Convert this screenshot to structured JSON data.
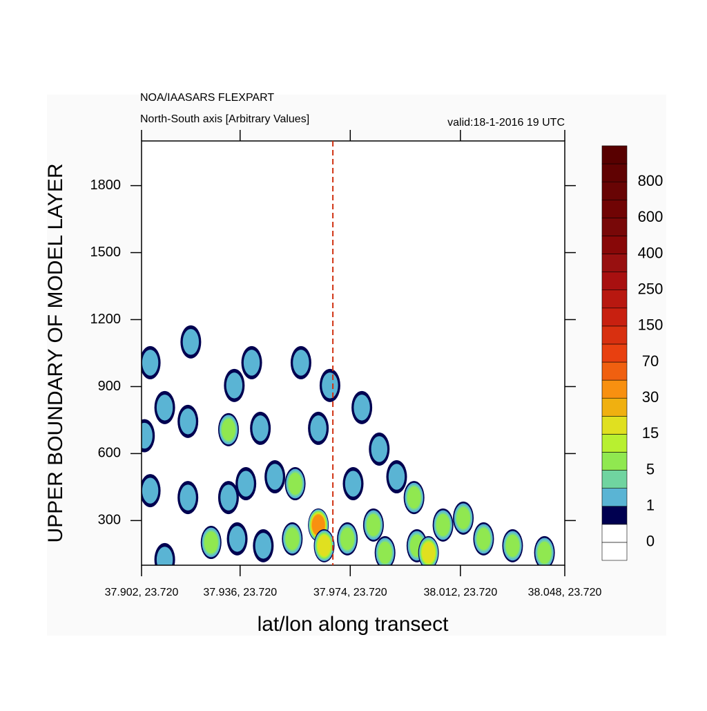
{
  "chart_data": {
    "type": "contour",
    "title": "NOA/IAASARS FLEXPART",
    "subtitle": "North-South axis [Arbitrary Values]",
    "valid_time": "valid:18-1-2016 19 UTC",
    "ylabel": "UPPER BOUNDARY OF MODEL LAYER",
    "xlabel": "lat/lon along transect",
    "xlim": [
      37.902,
      38.048
    ],
    "xticks": [
      {
        "value": 37.902,
        "label": "37.902, 23.720"
      },
      {
        "value": 37.936,
        "label": "37.936, 23.720"
      },
      {
        "value": 37.974,
        "label": "37.974, 23.720"
      },
      {
        "value": 38.012,
        "label": "38.012, 23.720"
      },
      {
        "value": 38.048,
        "label": "38.048, 23.720"
      }
    ],
    "ylim": [
      100,
      2000
    ],
    "yticks": [
      300,
      600,
      900,
      1200,
      1500,
      1800
    ],
    "marker_x": 37.968,
    "marker_color": "#d03010",
    "x": [
      37.905,
      37.919,
      37.94,
      37.957,
      37.934,
      37.967,
      37.978,
      37.91,
      37.918,
      37.932,
      37.943,
      37.963,
      37.984,
      37.903,
      37.905,
      37.918,
      37.932,
      37.935,
      37.926,
      37.938,
      37.948,
      37.955,
      37.963,
      37.965,
      37.975,
      37.973,
      37.982,
      37.99,
      37.996,
      37.997,
      38.001,
      38.006,
      38.013,
      38.02,
      38.03,
      38.041,
      37.91,
      37.944,
      37.954,
      37.986
    ],
    "y": [
      1007,
      1100,
      1007,
      1007,
      905,
      905,
      806,
      806,
      744,
      707,
      713,
      713,
      620,
      680,
      434,
      403,
      403,
      218,
      202,
      465,
      496,
      465,
      280,
      187,
      465,
      218,
      280,
      496,
      403,
      187,
      156,
      280,
      311,
      218,
      187,
      156,
      125,
      187,
      218,
      156
    ],
    "values": [
      3,
      3,
      3,
      3,
      3,
      3,
      3,
      3,
      3,
      8,
      3,
      3,
      3,
      3,
      3,
      3,
      3,
      4,
      5,
      3,
      4,
      6,
      30,
      20,
      3,
      8,
      8,
      3,
      8,
      10,
      25,
      8,
      12,
      10,
      8,
      8,
      2,
      3,
      5,
      8
    ],
    "colorbar": {
      "colors": [
        "#ffffff",
        "#ffffff",
        "#000050",
        "#5ab4d4",
        "#70d4a0",
        "#90e850",
        "#b8f030",
        "#e0e020",
        "#f0b010",
        "#f89010",
        "#f06010",
        "#e84010",
        "#d83010",
        "#c82010",
        "#b81810",
        "#a81010",
        "#981010",
        "#880808",
        "#780808",
        "#700404",
        "#680404",
        "#600202",
        "#580000"
      ],
      "labels": [
        0,
        1,
        5,
        15,
        30,
        70,
        150,
        250,
        400,
        600,
        800
      ]
    }
  }
}
